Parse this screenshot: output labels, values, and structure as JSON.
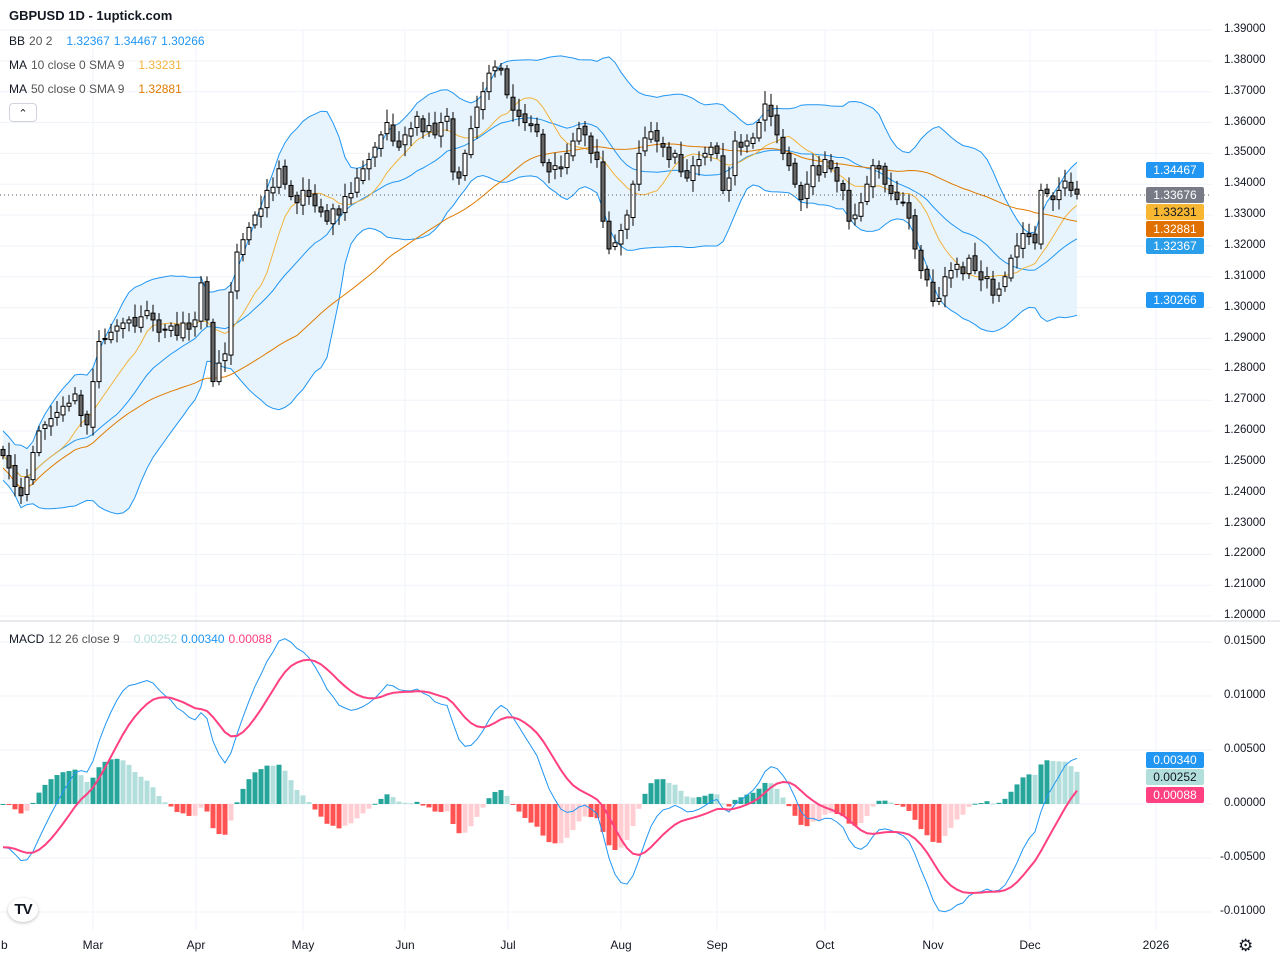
{
  "header": {
    "title": "GBPUSD 1D - 1uptick.com"
  },
  "legend": {
    "bb": {
      "label": "BB",
      "params": "20 2",
      "basis": "1.32367",
      "upper": "1.34467",
      "lower": "1.30266"
    },
    "ma10": {
      "label": "MA",
      "params": "10 close 0 SMA 9",
      "value": "1.33231"
    },
    "ma50": {
      "label": "MA",
      "params": "50 close 0 SMA 9",
      "value": "1.32881"
    },
    "collapse_icon": "chevron-up",
    "macd": {
      "label": "MACD",
      "params": "12 26 close 9",
      "hist": "0.00252",
      "macd": "0.00340",
      "signal": "0.00088"
    }
  },
  "price_axis": [
    "1.39000",
    "1.38000",
    "1.37000",
    "1.36000",
    "1.35000",
    "1.34000",
    "1.33000",
    "1.32000",
    "1.31000",
    "1.30000",
    "1.29000",
    "1.28000",
    "1.27000",
    "1.26000",
    "1.25000",
    "1.24000",
    "1.23000",
    "1.22000",
    "1.21000",
    "1.20000"
  ],
  "macd_axis": [
    "0.01500",
    "0.01000",
    "0.00500",
    "0.00000",
    "-0.00500",
    "-0.01000"
  ],
  "badges": {
    "bb_upper": "1.34467",
    "last": "1.33676",
    "ma10": "1.33231",
    "ma50": "1.32881",
    "bb_basis": "1.32367",
    "bb_lower": "1.30266",
    "macd": "0.00340",
    "hist": "0.00252",
    "signal": "0.00088"
  },
  "time_axis": [
    "b",
    "Mar",
    "Apr",
    "May",
    "Jun",
    "Jul",
    "Aug",
    "Sep",
    "Oct",
    "Nov",
    "Dec",
    "2026"
  ],
  "colors": {
    "up": "#ffffff",
    "down": "#666666",
    "bb": "#2196f3",
    "bb_fill": "#e3f2fd",
    "ma10": "#f2b33d",
    "ma50": "#e07b00",
    "macd": "#2196f3",
    "signal": "#ff4081",
    "hist_up_strong": "#26a69a",
    "hist_up_weak": "#b2dfdb",
    "hist_dn_strong": "#ff5252",
    "hist_dn_weak": "#ffcdd2"
  },
  "icons": {
    "logo": "tradingview-logo",
    "settings": "gear-icon"
  },
  "chart_data": {
    "type": "candlestick",
    "symbol": "GBPUSD",
    "interval": "1D",
    "ylim": [
      1.2,
      1.39
    ],
    "macd_ylim": [
      -0.0115,
      0.0165
    ],
    "grid": true,
    "closes": [
      1.252,
      1.248,
      1.242,
      1.239,
      1.245,
      1.253,
      1.26,
      1.262,
      1.264,
      1.266,
      1.268,
      1.269,
      1.272,
      1.265,
      1.262,
      1.276,
      1.289,
      1.29,
      1.292,
      1.294,
      1.295,
      1.296,
      1.294,
      1.297,
      1.299,
      1.296,
      1.292,
      1.293,
      1.294,
      1.291,
      1.295,
      1.293,
      1.296,
      1.308,
      1.296,
      1.276,
      1.282,
      1.285,
      1.305,
      1.318,
      1.322,
      1.326,
      1.33,
      1.332,
      1.338,
      1.339,
      1.345,
      1.34,
      1.336,
      1.334,
      1.338,
      1.336,
      1.333,
      1.331,
      1.328,
      1.332,
      1.33,
      1.336,
      1.337,
      1.342,
      1.345,
      1.348,
      1.352,
      1.356,
      1.36,
      1.354,
      1.352,
      1.356,
      1.358,
      1.362,
      1.357,
      1.359,
      1.356,
      1.36,
      1.362,
      1.344,
      1.342,
      1.35,
      1.358,
      1.365,
      1.37,
      1.376,
      1.378,
      1.377,
      1.369,
      1.364,
      1.362,
      1.36,
      1.359,
      1.357,
      1.347,
      1.344,
      1.346,
      1.345,
      1.35,
      1.354,
      1.358,
      1.356,
      1.35,
      1.348,
      1.328,
      1.319,
      1.321,
      1.325,
      1.33,
      1.34,
      1.35,
      1.355,
      1.357,
      1.354,
      1.352,
      1.348,
      1.35,
      1.344,
      1.342,
      1.346,
      1.348,
      1.35,
      1.352,
      1.35,
      1.338,
      1.342,
      1.354,
      1.352,
      1.354,
      1.355,
      1.36,
      1.366,
      1.362,
      1.356,
      1.35,
      1.346,
      1.34,
      1.335,
      1.34,
      1.346,
      1.343,
      1.348,
      1.345,
      1.341,
      1.338,
      1.328,
      1.33,
      1.334,
      1.34,
      1.346,
      1.345,
      1.34,
      1.337,
      1.335,
      1.334,
      1.329,
      1.319,
      1.312,
      1.309,
      1.302,
      1.303,
      1.31,
      1.312,
      1.314,
      1.311,
      1.316,
      1.312,
      1.309,
      1.31,
      1.304,
      1.306,
      1.31,
      1.316,
      1.32,
      1.324,
      1.323,
      1.321,
      1.338,
      1.337,
      1.335,
      1.338,
      1.341,
      1.338,
      1.33676
    ],
    "indicators": [
      "BB 20 2",
      "MA 10",
      "MA 50",
      "MACD 12 26 9"
    ]
  }
}
